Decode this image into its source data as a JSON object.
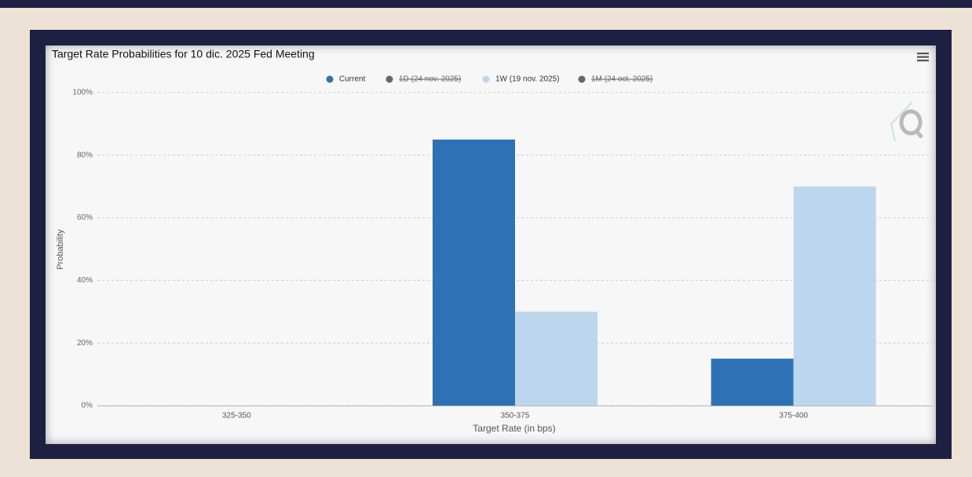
{
  "chart_data": {
    "type": "bar",
    "title": "Target Rate Probabilities for 10 dic. 2025 Fed Meeting",
    "x_label": "Target Rate (in bps)",
    "y_label": "Probability",
    "categories": [
      "325-350",
      "350-375",
      "375-400"
    ],
    "series": [
      {
        "name": "Current",
        "color": "#2e72b5",
        "values": [
          0,
          85,
          15
        ]
      },
      {
        "name": "1D (24 nov. 2025)",
        "color": "#666666",
        "visible": false
      },
      {
        "name": "1W (19 nov. 2025)",
        "color": "#bcd6ee",
        "values": [
          0,
          30,
          70
        ]
      },
      {
        "name": "1M (24 oct. 2025)",
        "color": "#666666",
        "visible": false
      }
    ],
    "ylim": [
      0,
      100
    ],
    "yticks": [
      {
        "value": 0,
        "label": "0%"
      },
      {
        "value": 20,
        "label": "20%"
      },
      {
        "value": 40,
        "label": "40%"
      },
      {
        "value": 60,
        "label": "60%"
      },
      {
        "value": 80,
        "label": "80%"
      },
      {
        "value": 100,
        "label": "100%"
      }
    ],
    "grid": true,
    "legend": "top"
  }
}
